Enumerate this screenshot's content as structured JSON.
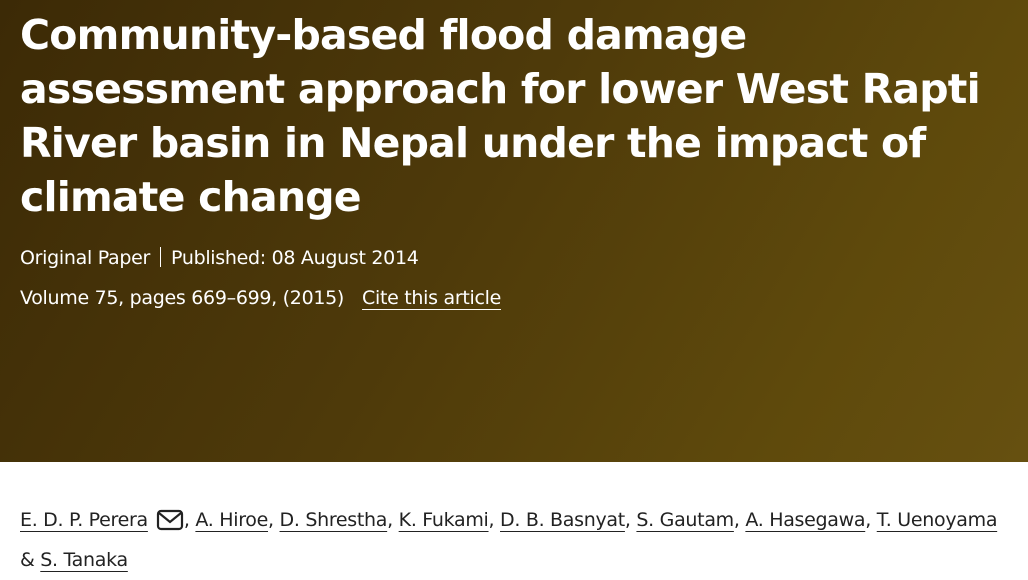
{
  "header": {
    "title": "Community-based flood damage assessment approach for lower West Rapti River basin in Nepal under the impact of climate change",
    "article_type": "Original Paper",
    "published": "Published: 08 August 2014",
    "volume_info": "Volume 75, pages 669–699, (2015)",
    "cite_link": "Cite this article"
  },
  "authors": {
    "names": [
      "E. D. P. Perera",
      "A. Hiroe",
      "D. Shrestha",
      "K. Fukami",
      "D. B. Basnyat",
      "S. Gautam",
      "A. Hasegawa",
      "T. Uenoyama",
      "S. Tanaka"
    ],
    "separator": ",",
    "conjunction": "&"
  }
}
